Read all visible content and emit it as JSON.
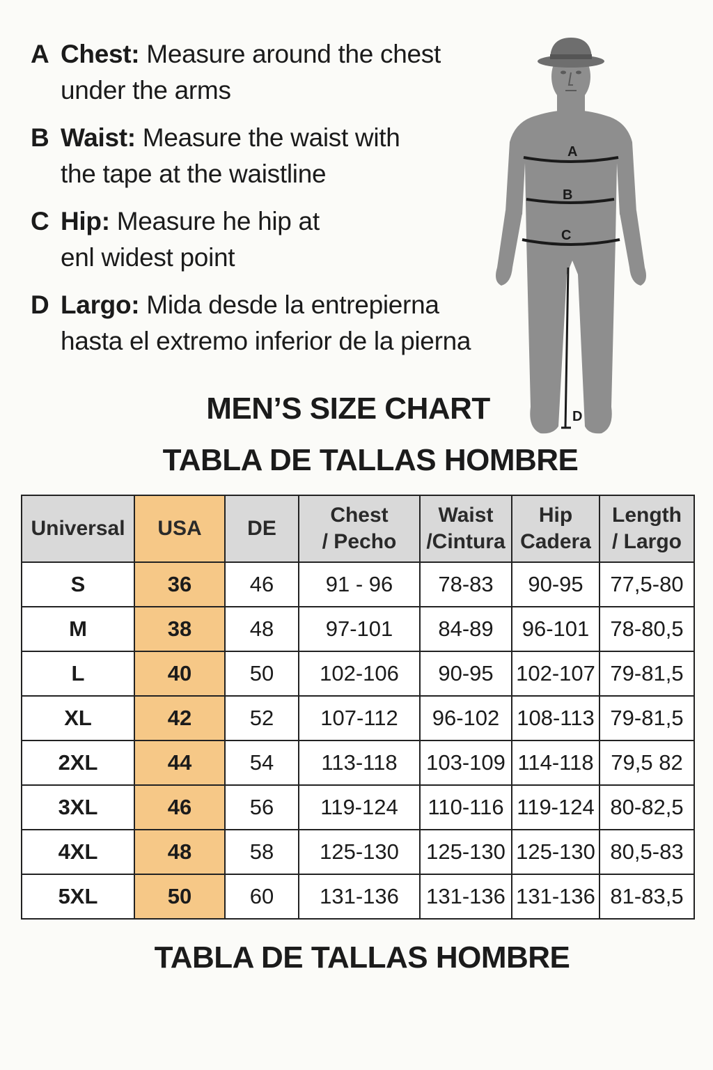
{
  "instructions": [
    {
      "letter": "A",
      "label": "Chest:",
      "line1": " Measure around the chest",
      "line2": "under the arms"
    },
    {
      "letter": "B",
      "label": "Waist:",
      "line1": " Measure the waist with",
      "line2": "the tape at the waistline"
    },
    {
      "letter": "C",
      "label": "Hip:",
      "line1": " Measure he hip at",
      "line2": "enl widest point"
    },
    {
      "letter": "D",
      "label": "Largo:",
      "line1": " Mida  desde la entrepierna",
      "line2": "hasta el extremo inferior de la pierna"
    }
  ],
  "figure": {
    "markers": [
      "A",
      "B",
      "C",
      "D"
    ],
    "colors": {
      "body": "#8e8e8e",
      "hat": "#6e6e6e",
      "line": "#1a1a1a"
    }
  },
  "headings": {
    "title_en": "MEN’S SIZE CHART",
    "title_es": "TABLA DE TALLAS HOMBRE",
    "footer": "TABLA DE TALLAS HOMBRE"
  },
  "table": {
    "headers": [
      [
        "Universal"
      ],
      [
        "USA"
      ],
      [
        "DE"
      ],
      [
        "Chest",
        "/ Pecho"
      ],
      [
        "Waist",
        "/Cintura"
      ],
      [
        "Hip",
        "Cadera"
      ],
      [
        "Length",
        "/ Largo"
      ]
    ],
    "rows": [
      [
        "S",
        "36",
        "46",
        "91 - 96",
        "78-83",
        "90-95",
        "77,5-80"
      ],
      [
        "M",
        "38",
        "48",
        "97-101",
        "84-89",
        "96-101",
        "78-80,5"
      ],
      [
        "L",
        "40",
        "50",
        "102-106",
        "90-95",
        "102-107",
        "79-81,5"
      ],
      [
        "XL",
        "42",
        "52",
        "107-112",
        "96-102",
        "108-113",
        "79-81,5"
      ],
      [
        "2XL",
        "44",
        "54",
        "113-118",
        "103-109",
        "114-118",
        "79,5 82"
      ],
      [
        "3XL",
        "46",
        "56",
        "119-124",
        "110-116",
        "119-124",
        "80-82,5"
      ],
      [
        "4XL",
        "48",
        "58",
        "125-130",
        "125-130",
        "125-130",
        "80,5-83"
      ],
      [
        "5XL",
        "50",
        "60",
        "131-136",
        "131-136",
        "131-136",
        "81-83,5"
      ]
    ],
    "colors": {
      "header_bg": "#d9d9d9",
      "usa_bg": "#f6c887",
      "border": "#222222"
    }
  }
}
